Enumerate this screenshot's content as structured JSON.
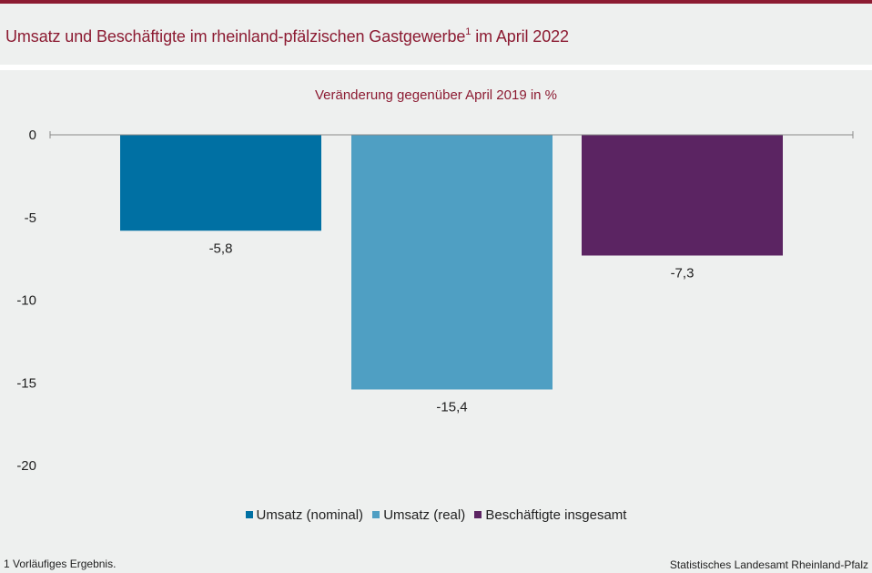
{
  "header": {
    "title": "Umsatz und Beschäftigte im rheinland-pfälzischen Gastgewerbe",
    "title_sup": "1",
    "title_suffix": " im April 2022"
  },
  "chart_data": {
    "type": "bar",
    "subtitle": "Veränderung gegenüber April 2019 in %",
    "categories": [
      "Umsatz (nominal)",
      "Umsatz (real)",
      "Beschäftigte insgesamt"
    ],
    "values": [
      -5.8,
      -15.4,
      -7.3
    ],
    "data_labels": [
      "-5,8",
      "-15,4",
      "-7,3"
    ],
    "colors": [
      "#0070a3",
      "#4f9fc3",
      "#5b2462"
    ],
    "yticks": [
      0,
      -5,
      -10,
      -15,
      -20
    ],
    "ytick_labels": [
      "0",
      "-5",
      "-10",
      "-15",
      "-20"
    ],
    "ylim": [
      -20,
      0
    ],
    "legend_position": "bottom",
    "grid": false
  },
  "footer": {
    "footnote": "1 Vorläufiges  Ergebnis.",
    "source": "Statistisches Landesamt Rheinland-Pfalz"
  }
}
